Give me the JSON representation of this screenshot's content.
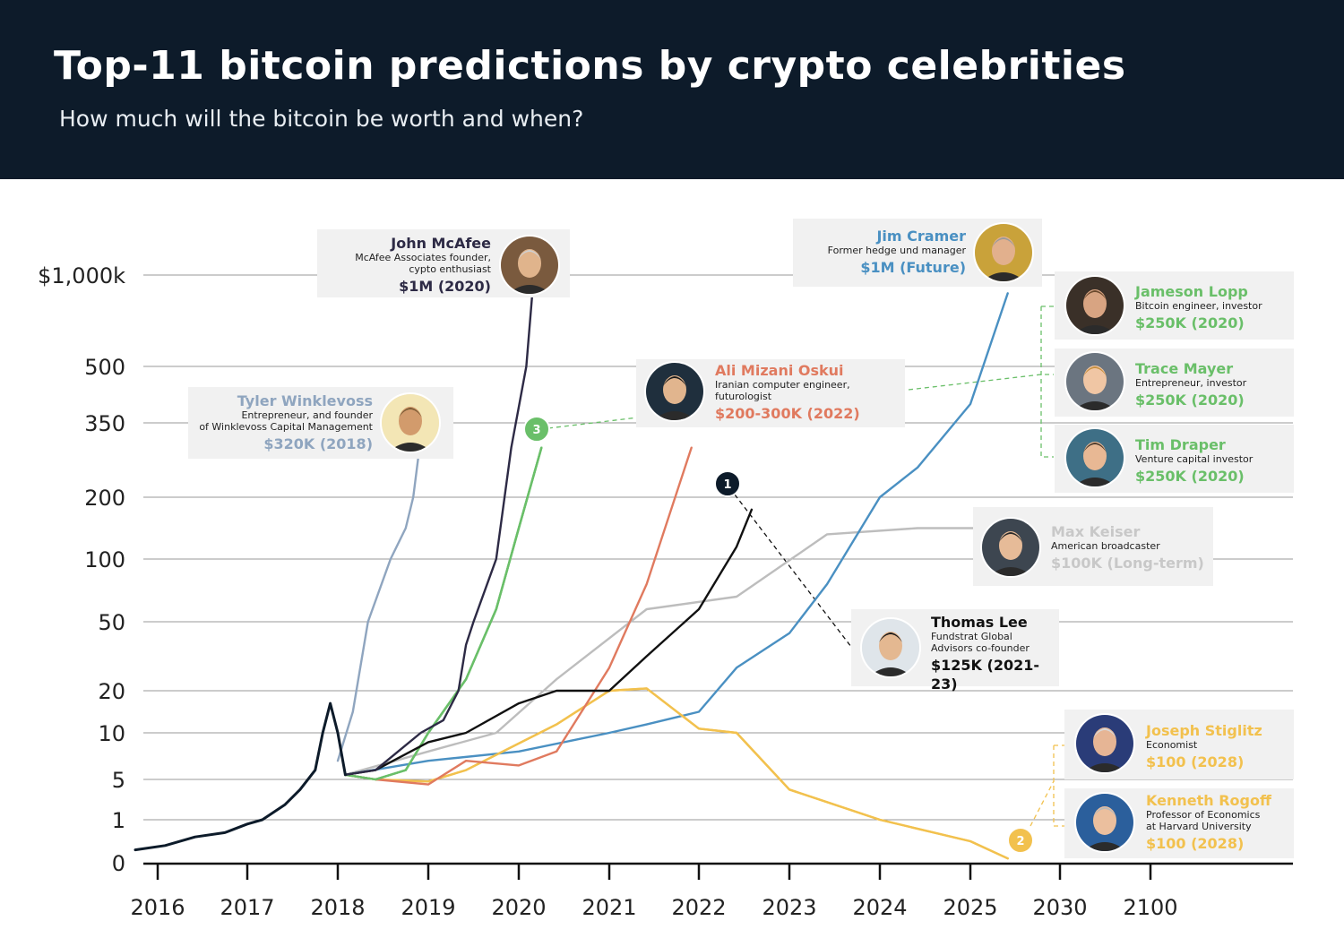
{
  "header": {
    "title": "Top-11 bitcoin predictions by crypto celebrities",
    "subtitle": "How much will the bitcoin be worth and when?"
  },
  "chart_data": {
    "type": "line",
    "title": "Top-11 bitcoin predictions by crypto celebrities",
    "subtitle": "How much will the bitcoin be worth and when?",
    "xlabel": "",
    "ylabel": "",
    "y_scale": "irregular (non-linear) price scale, thousands USD",
    "y_ticks": [
      "0",
      "1",
      "5",
      "10",
      "20",
      "50",
      "100",
      "200",
      "350",
      "500",
      "$1,000k"
    ],
    "x_ticks": [
      "2016",
      "2017",
      "2018",
      "2019",
      "2020",
      "2021",
      "2022",
      "2023",
      "2024",
      "2025",
      "2030",
      "2100"
    ],
    "grid": "horizontal",
    "series": [
      {
        "id": "historical",
        "color": "#0d1b2a",
        "points": [
          [
            "2015-10",
            0.3
          ],
          [
            "2016-02",
            0.4
          ],
          [
            "2016-06",
            0.6
          ],
          [
            "2016-10",
            0.7
          ],
          [
            "2017-01",
            0.9
          ],
          [
            "2017-03",
            1.0
          ],
          [
            "2017-06",
            2.5
          ],
          [
            "2017-08",
            4
          ],
          [
            "2017-10",
            6
          ],
          [
            "2017-11",
            10
          ],
          [
            "2017-12",
            17
          ],
          [
            "2018-01",
            10
          ],
          [
            "2018-02",
            5.5
          ]
        ]
      },
      {
        "id": "tyler-winklevoss",
        "color": "#8fa5bf",
        "points": [
          [
            "2018-01",
            7
          ],
          [
            "2018-03",
            15
          ],
          [
            "2018-05",
            50
          ],
          [
            "2018-08",
            100
          ],
          [
            "2018-10",
            150
          ],
          [
            "2018-11",
            200
          ],
          [
            "2018-12",
            320
          ]
        ]
      },
      {
        "id": "john-mcafee",
        "color": "#2d2a45",
        "points": [
          [
            "2018-02",
            5.5
          ],
          [
            "2018-06",
            6
          ],
          [
            "2018-09",
            8
          ],
          [
            "2018-12",
            10
          ],
          [
            "2019-03",
            13
          ],
          [
            "2019-05",
            20
          ],
          [
            "2019-06",
            40
          ],
          [
            "2019-07",
            50
          ],
          [
            "2019-10",
            100
          ],
          [
            "2019-12",
            300
          ],
          [
            "2020-02",
            500
          ],
          [
            "2020-03",
            1000
          ]
        ]
      },
      {
        "id": "ali-mizani-oskui",
        "color": "#e07a5f",
        "points": [
          [
            "2018-02",
            5.5
          ],
          [
            "2018-06",
            5
          ],
          [
            "2019-01",
            4.5
          ],
          [
            "2019-06",
            7
          ],
          [
            "2020-01",
            6.5
          ],
          [
            "2020-06",
            8
          ],
          [
            "2021-01",
            30
          ],
          [
            "2021-06",
            80
          ],
          [
            "2021-12",
            300
          ]
        ]
      },
      {
        "id": "jameson-lopp",
        "color": "#6abf69",
        "points": [
          [
            "2018-02",
            5.5
          ],
          [
            "2018-06",
            5
          ],
          [
            "2018-10",
            6
          ],
          [
            "2019-01",
            10
          ],
          [
            "2019-06",
            25
          ],
          [
            "2019-10",
            60
          ],
          [
            "2020-01",
            150
          ],
          [
            "2020-04",
            300
          ]
        ]
      },
      {
        "id": "trace-mayer",
        "color": "#6abf69",
        "points": [
          [
            "2018-02",
            5.5
          ],
          [
            "2018-06",
            5
          ],
          [
            "2018-10",
            6
          ],
          [
            "2019-01",
            10
          ],
          [
            "2019-06",
            25
          ],
          [
            "2019-10",
            60
          ],
          [
            "2020-01",
            150
          ],
          [
            "2020-04",
            300
          ]
        ]
      },
      {
        "id": "tim-draper",
        "color": "#6abf69",
        "points": [
          [
            "2018-02",
            5.5
          ],
          [
            "2018-06",
            5
          ],
          [
            "2018-10",
            6
          ],
          [
            "2019-01",
            10
          ],
          [
            "2019-06",
            25
          ],
          [
            "2019-10",
            60
          ],
          [
            "2020-01",
            150
          ],
          [
            "2020-04",
            300
          ]
        ]
      },
      {
        "id": "thomas-lee",
        "color": "#111111",
        "points": [
          [
            "2018-02",
            5.5
          ],
          [
            "2018-06",
            6
          ],
          [
            "2019-01",
            9
          ],
          [
            "2019-06",
            10
          ],
          [
            "2020-01",
            17
          ],
          [
            "2020-06",
            20
          ],
          [
            "2021-01",
            20
          ],
          [
            "2021-06",
            35
          ],
          [
            "2022-01",
            60
          ],
          [
            "2022-06",
            120
          ],
          [
            "2022-08",
            180
          ]
        ]
      },
      {
        "id": "max-keiser",
        "color": "#bdbdbd",
        "points": [
          [
            "2018-02",
            5.5
          ],
          [
            "2019-01",
            8
          ],
          [
            "2019-10",
            10
          ],
          [
            "2020-06",
            25
          ],
          [
            "2021-06",
            60
          ],
          [
            "2022-06",
            70
          ],
          [
            "2023-06",
            140
          ],
          [
            "2024-06",
            150
          ],
          [
            "2025-02",
            150
          ]
        ]
      },
      {
        "id": "jim-cramer",
        "color": "#4a90c2",
        "points": [
          [
            "2018-02",
            5.5
          ],
          [
            "2019-01",
            7
          ],
          [
            "2020-01",
            8
          ],
          [
            "2021-01",
            10
          ],
          [
            "2021-06",
            12
          ],
          [
            "2022-01",
            15
          ],
          [
            "2022-06",
            30
          ],
          [
            "2023-01",
            45
          ],
          [
            "2023-06",
            80
          ],
          [
            "2024-01",
            200
          ],
          [
            "2024-06",
            260
          ],
          [
            "2025-01",
            400
          ],
          [
            "2025-06",
            900
          ]
        ]
      },
      {
        "id": "joseph-stiglitz",
        "color": "#f2c14e",
        "points": [
          [
            "2018-02",
            5.5
          ],
          [
            "2018-06",
            5
          ],
          [
            "2019-01",
            4.8
          ],
          [
            "2019-06",
            6
          ],
          [
            "2020-06",
            12
          ],
          [
            "2021-01",
            20
          ],
          [
            "2021-06",
            21
          ],
          [
            "2022-01",
            11
          ],
          [
            "2022-06",
            10
          ],
          [
            "2023-01",
            4
          ],
          [
            "2024-01",
            1
          ],
          [
            "2025-01",
            0.5
          ],
          [
            "2025-06",
            0.1
          ]
        ]
      },
      {
        "id": "kenneth-rogoff",
        "color": "#f2c14e",
        "points": [
          [
            "2018-02",
            5.5
          ],
          [
            "2018-06",
            5
          ],
          [
            "2019-01",
            4.8
          ],
          [
            "2019-06",
            6
          ],
          [
            "2020-06",
            12
          ],
          [
            "2021-01",
            20
          ],
          [
            "2021-06",
            21
          ],
          [
            "2022-01",
            11
          ],
          [
            "2022-06",
            10
          ],
          [
            "2023-01",
            4
          ],
          [
            "2024-01",
            1
          ],
          [
            "2025-01",
            0.5
          ],
          [
            "2025-06",
            0.1
          ]
        ]
      }
    ],
    "callout_badges": [
      "1",
      "2",
      "3"
    ]
  },
  "predictions": [
    {
      "key": "mcafee",
      "name": "John McAfee",
      "desc": [
        "McAfee Associates founder,",
        "cypto enthusiast"
      ],
      "price": "$1M (2020)",
      "name_color": "#2d2a45",
      "price_color": "#2d2a45"
    },
    {
      "key": "cramer",
      "name": "Jim Cramer",
      "desc": [
        "Former hedge und manager"
      ],
      "price": "$1M (Future)",
      "name_color": "#4a90c2",
      "price_color": "#4a90c2"
    },
    {
      "key": "lopp",
      "name": "Jameson Lopp",
      "desc": [
        "Bitcoin engineer, investor"
      ],
      "price": "$250K (2020)",
      "name_color": "#6abf69",
      "price_color": "#6abf69"
    },
    {
      "key": "mayer",
      "name": "Trace Mayer",
      "desc": [
        "Entrepreneur, investor"
      ],
      "price": "$250K (2020)",
      "name_color": "#6abf69",
      "price_color": "#6abf69"
    },
    {
      "key": "draper",
      "name": "Tim Draper",
      "desc": [
        "Venture capital investor"
      ],
      "price": "$250K (2020)",
      "name_color": "#6abf69",
      "price_color": "#6abf69"
    },
    {
      "key": "oskui",
      "name": "Ali Mizani Oskui",
      "desc": [
        "Iranian computer engineer,",
        "futurologist"
      ],
      "price": "$200-300K (2022)",
      "name_color": "#e07a5f",
      "price_color": "#e07a5f"
    },
    {
      "key": "winklevoss",
      "name": "Tyler Winklevoss",
      "desc": [
        "Entrepreneur, and founder",
        "of Winklevoss Capital Management"
      ],
      "price": "$320K (2018)",
      "name_color": "#8fa5bf",
      "price_color": "#8fa5bf"
    },
    {
      "key": "keiser",
      "name": "Max Keiser",
      "desc": [
        "American broadcaster"
      ],
      "price": "$100K (Long-term)",
      "name_color": "#c8c8c8",
      "price_color": "#c8c8c8"
    },
    {
      "key": "lee",
      "name": "Thomas Lee",
      "desc": [
        "Fundstrat Global",
        "Advisors co-founder"
      ],
      "price": "$125K (2021-23)",
      "name_color": "#111111",
      "price_color": "#111111"
    },
    {
      "key": "stiglitz",
      "name": "Joseph Stiglitz",
      "desc": [
        "Economist"
      ],
      "price": "$100 (2028)",
      "name_color": "#f2c14e",
      "price_color": "#f2c14e"
    },
    {
      "key": "rogoff",
      "name": "Kenneth Rogoff",
      "desc": [
        "Professor of Economics",
        "at Harvard University"
      ],
      "price": "$100 (2028)",
      "name_color": "#f2c14e",
      "price_color": "#f2c14e"
    }
  ],
  "avatars": {
    "mcafee": {
      "bg": "#7a5a3e",
      "skin": "#e0b48c",
      "hair": "#cfcfcf"
    },
    "cramer": {
      "bg": "#c9a23a",
      "skin": "#e2b08d",
      "hair": "#9a9a9a"
    },
    "lopp": {
      "bg": "#3a3028",
      "skin": "#d8a482",
      "hair": "#6b4a2e"
    },
    "mayer": {
      "bg": "#6b7580",
      "skin": "#f0c6a4",
      "hair": "#c7903f"
    },
    "draper": {
      "bg": "#3e6f86",
      "skin": "#e8b894",
      "hair": "#4b3a2c"
    },
    "oskui": {
      "bg": "#1f2f3d",
      "skin": "#e1b58e",
      "hair": "#1b1b1b"
    },
    "winklevoss": {
      "bg": "#f3e6b5",
      "skin": "#d29b6c",
      "hair": "#7a5b35"
    },
    "keiser": {
      "bg": "#3d4650",
      "skin": "#e6bb98",
      "hair": "#2a2a2a"
    },
    "lee": {
      "bg": "#dfe5ea",
      "skin": "#e4b891",
      "hair": "#1a1a1a"
    },
    "stiglitz": {
      "bg": "#2a3c78",
      "skin": "#e6b595",
      "hair": "#d8d8d8"
    },
    "rogoff": {
      "bg": "#2b5f9c",
      "skin": "#ebbf9e",
      "hair": "#b9b9b9"
    }
  }
}
